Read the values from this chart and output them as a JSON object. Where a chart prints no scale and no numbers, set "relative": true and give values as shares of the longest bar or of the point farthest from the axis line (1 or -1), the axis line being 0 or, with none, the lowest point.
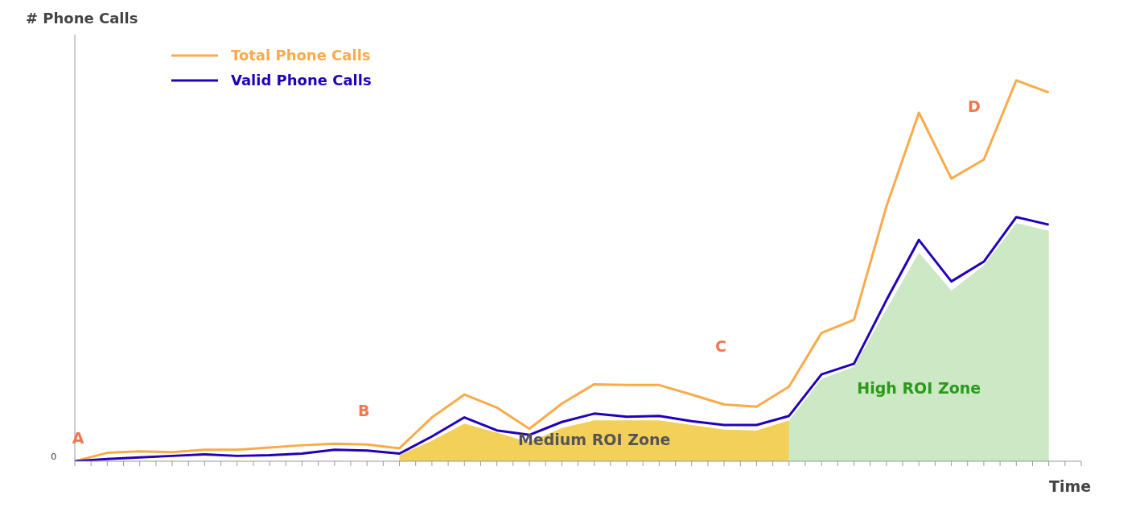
{
  "chart_data": {
    "type": "line",
    "ylabel": "# Phone Calls",
    "xlabel": "Time",
    "relative": true,
    "categories": [
      null,
      null,
      null,
      null,
      null,
      null,
      null,
      null,
      null,
      null,
      null,
      null,
      null,
      null,
      null,
      null,
      null,
      null,
      null,
      null,
      null,
      null,
      null,
      null,
      null,
      null,
      null,
      null,
      null,
      null,
      null
    ],
    "series": [
      {
        "name": "Medium ROI Zone",
        "type": "area",
        "color": "#f2d05a",
        "values": [
          null,
          null,
          null,
          null,
          null,
          null,
          null,
          null,
          null,
          null,
          0.016,
          0.054,
          0.099,
          0.075,
          0.05,
          0.087,
          0.107,
          0.107,
          0.107,
          0.095,
          0.083,
          0.081,
          0.107,
          null,
          null,
          null,
          null,
          null,
          null,
          null,
          null
        ]
      },
      {
        "name": "High ROI Zone",
        "type": "area",
        "color": "#cce8c4",
        "values": [
          null,
          null,
          null,
          null,
          null,
          null,
          null,
          null,
          null,
          null,
          null,
          null,
          null,
          null,
          null,
          null,
          null,
          null,
          null,
          null,
          null,
          null,
          0.107,
          0.216,
          0.248,
          0.399,
          0.548,
          0.448,
          0.514,
          0.625,
          0.605
        ]
      },
      {
        "name": "Total Phone Calls",
        "color": "#f9ab4a",
        "values": [
          0,
          0.022,
          0.026,
          0.024,
          0.03,
          0.03,
          0.036,
          0.042,
          0.046,
          0.044,
          0.034,
          0.115,
          0.175,
          0.141,
          0.085,
          0.151,
          0.202,
          0.2,
          0.2,
          0.175,
          0.149,
          0.143,
          0.196,
          0.337,
          0.371,
          0.669,
          0.915,
          0.742,
          0.792,
          1,
          0.968
        ]
      },
      {
        "name": "Valid Phone Calls",
        "color": "#2200bb",
        "values": [
          0,
          0.006,
          0.01,
          0.014,
          0.018,
          0.014,
          0.016,
          0.02,
          0.03,
          0.028,
          0.02,
          0.065,
          0.115,
          0.081,
          0.069,
          0.103,
          0.125,
          0.117,
          0.119,
          0.105,
          0.095,
          0.095,
          0.119,
          0.228,
          0.256,
          0.423,
          0.581,
          0.472,
          0.524,
          0.641,
          0.621
        ]
      }
    ],
    "annotations": [
      "A",
      "B",
      "C",
      "D",
      "0"
    ],
    "legend": "top left",
    "grid": false,
    "marker": "none",
    "line_style": "solid"
  }
}
